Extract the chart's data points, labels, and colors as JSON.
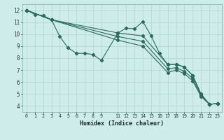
{
  "xlabel": "Humidex (Indice chaleur)",
  "bg_color": "#ceecea",
  "grid_color": "#b8d8d4",
  "line_color": "#2a6b5a",
  "xlim": [
    -0.5,
    23.5
  ],
  "ylim": [
    3.5,
    12.5
  ],
  "xticks": [
    0,
    1,
    2,
    3,
    4,
    5,
    6,
    7,
    8,
    9,
    11,
    12,
    13,
    14,
    15,
    16,
    17,
    18,
    19,
    20,
    21,
    22,
    23
  ],
  "xtick_labels": [
    "0",
    "1",
    "2",
    "3",
    "4",
    "5",
    "6",
    "7",
    "8",
    "9",
    "11",
    "12",
    "13",
    "14",
    "15",
    "16",
    "17",
    "18",
    "19",
    "20",
    "21",
    "22",
    "23"
  ],
  "yticks": [
    4,
    5,
    6,
    7,
    8,
    9,
    10,
    11,
    12
  ],
  "lines": [
    {
      "x": [
        0,
        1,
        2,
        3,
        4,
        5,
        6,
        7,
        8,
        9,
        11,
        12,
        13,
        14,
        15,
        16,
        17,
        18,
        19,
        20,
        21,
        22,
        23
      ],
      "y": [
        12,
        11.65,
        11.55,
        11.2,
        9.8,
        8.85,
        8.4,
        8.4,
        8.3,
        7.8,
        10.1,
        10.5,
        10.45,
        11.05,
        9.85,
        8.4,
        7.45,
        7.5,
        7.25,
        6.55,
        5.0,
        4.15,
        4.2
      ]
    },
    {
      "x": [
        0,
        3,
        11,
        14,
        17,
        18,
        19,
        20,
        21,
        22,
        23
      ],
      "y": [
        12,
        11.2,
        10.1,
        9.85,
        7.45,
        7.5,
        7.25,
        6.55,
        5.0,
        4.15,
        4.2
      ]
    },
    {
      "x": [
        0,
        3,
        11,
        14,
        17,
        18,
        19,
        20,
        21,
        22,
        23
      ],
      "y": [
        12,
        11.2,
        9.8,
        9.4,
        7.1,
        7.2,
        6.9,
        6.3,
        4.9,
        4.15,
        4.2
      ]
    },
    {
      "x": [
        0,
        3,
        11,
        14,
        17,
        18,
        19,
        20,
        21,
        22,
        23
      ],
      "y": [
        12,
        11.2,
        9.5,
        9.0,
        6.8,
        7.0,
        6.7,
        6.1,
        4.8,
        4.15,
        4.2
      ]
    }
  ]
}
